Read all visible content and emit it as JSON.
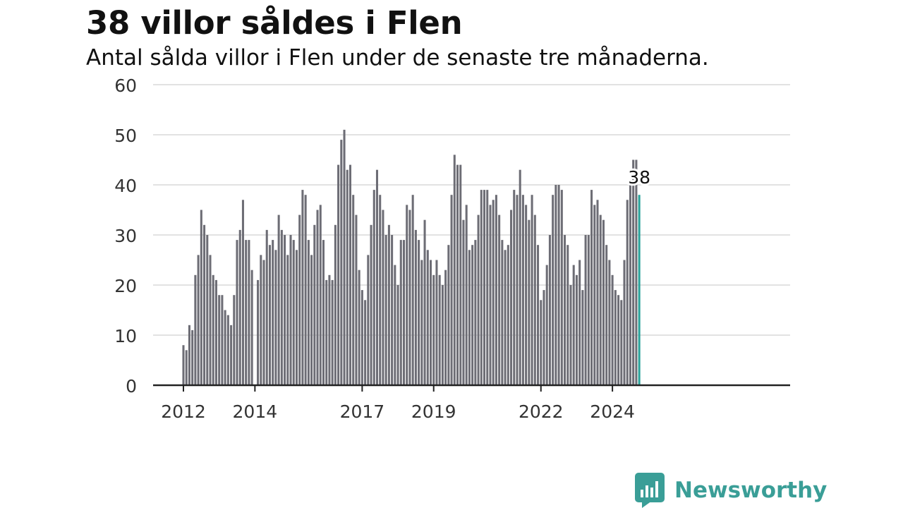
{
  "header": {
    "title": "38 villor såldes i Flen",
    "subtitle": "Antal sålda villor i Flen under de senaste tre månaderna."
  },
  "brand": {
    "name": "Newsworthy",
    "color": "#3a9e97",
    "icon": "newsworthy-logo-icon"
  },
  "chart_data": {
    "type": "bar",
    "x_start": "2012-01",
    "x_tick_labels": [
      "2012",
      "2014",
      "2017",
      "2019",
      "2022",
      "2024"
    ],
    "x_tick_months": [
      "2012-01",
      "2014-01",
      "2017-01",
      "2019-01",
      "2022-01",
      "2024-01"
    ],
    "y_ticks": [
      0,
      10,
      20,
      30,
      40,
      50,
      60
    ],
    "ylim": [
      0,
      60
    ],
    "grid": true,
    "bar_color": "#6d6d75",
    "highlight_color": "#2aa39b",
    "highlight_label": "38",
    "values": [
      8,
      7,
      12,
      11,
      22,
      26,
      35,
      32,
      30,
      26,
      22,
      21,
      18,
      18,
      15,
      14,
      12,
      18,
      29,
      31,
      37,
      29,
      29,
      23,
      null,
      21,
      26,
      25,
      31,
      28,
      29,
      27,
      34,
      31,
      30,
      26,
      30,
      29,
      27,
      34,
      39,
      38,
      29,
      26,
      32,
      35,
      36,
      29,
      21,
      22,
      21,
      32,
      44,
      49,
      51,
      43,
      44,
      38,
      34,
      23,
      19,
      17,
      26,
      32,
      39,
      43,
      38,
      35,
      30,
      32,
      30,
      24,
      20,
      29,
      29,
      36,
      35,
      38,
      31,
      29,
      25,
      33,
      27,
      25,
      22,
      25,
      22,
      20,
      23,
      28,
      38,
      46,
      44,
      44,
      33,
      36,
      27,
      28,
      29,
      34,
      39,
      39,
      39,
      36,
      37,
      38,
      34,
      29,
      27,
      28,
      35,
      39,
      38,
      43,
      38,
      36,
      33,
      38,
      34,
      28,
      17,
      19,
      24,
      30,
      38,
      40,
      40,
      39,
      30,
      28,
      20,
      24,
      22,
      25,
      19,
      30,
      30,
      39,
      36,
      37,
      34,
      33,
      28,
      25,
      22,
      19,
      18,
      17,
      25,
      37,
      40,
      45,
      45,
      38
    ]
  }
}
